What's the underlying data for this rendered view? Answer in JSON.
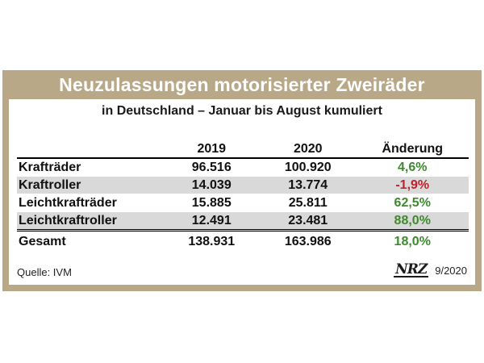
{
  "title": "Neuzulassungen motorisierter Zweiräder",
  "subtitle": "in Deutschland – Januar bis August kumuliert",
  "table": {
    "headers": [
      "",
      "2019",
      "2020",
      "Änderung"
    ],
    "rows": [
      {
        "label": "Krafträder",
        "v2019": "96.516",
        "v2020": "100.920",
        "change": "4,6%"
      },
      {
        "label": "Kraftroller",
        "v2019": "14.039",
        "v2020": "13.774",
        "change": "-1,9%"
      },
      {
        "label": "Leichtkrafträder",
        "v2019": "15.885",
        "v2020": "25.811",
        "change": "62,5%"
      },
      {
        "label": "Leichtkraftroller",
        "v2019": "12.491",
        "v2020": "23.481",
        "change": "88,0%"
      }
    ],
    "total": {
      "label": "Gesamt",
      "v2019": "138.931",
      "v2020": "163.986",
      "change": "18,0%"
    }
  },
  "source": "Quelle: IVM",
  "logo": "NRZ",
  "date": "9/2020",
  "colors": {
    "frame": "#b9a888",
    "positive": "#3e8a2e",
    "negative": "#c0212b",
    "shade": "#d9d9d9"
  }
}
